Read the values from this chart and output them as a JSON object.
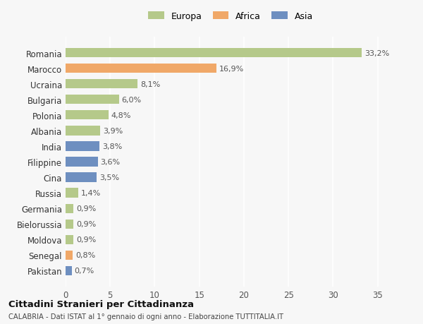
{
  "countries": [
    "Romania",
    "Marocco",
    "Ucraina",
    "Bulgaria",
    "Polonia",
    "Albania",
    "India",
    "Filippine",
    "Cina",
    "Russia",
    "Germania",
    "Bielorussia",
    "Moldova",
    "Senegal",
    "Pakistan"
  ],
  "values": [
    33.2,
    16.9,
    8.1,
    6.0,
    4.8,
    3.9,
    3.8,
    3.6,
    3.5,
    1.4,
    0.9,
    0.9,
    0.9,
    0.8,
    0.7
  ],
  "labels": [
    "33,2%",
    "16,9%",
    "8,1%",
    "6,0%",
    "4,8%",
    "3,9%",
    "3,8%",
    "3,6%",
    "3,5%",
    "1,4%",
    "0,9%",
    "0,9%",
    "0,9%",
    "0,8%",
    "0,7%"
  ],
  "continents": [
    "Europa",
    "Africa",
    "Europa",
    "Europa",
    "Europa",
    "Europa",
    "Asia",
    "Asia",
    "Asia",
    "Europa",
    "Europa",
    "Europa",
    "Europa",
    "Africa",
    "Asia"
  ],
  "colors": {
    "Europa": "#b5c98a",
    "Africa": "#f0a868",
    "Asia": "#6e8fc0"
  },
  "background_color": "#f7f7f7",
  "title": "Cittadini Stranieri per Cittadinanza",
  "subtitle": "CALABRIA - Dati ISTAT al 1° gennaio di ogni anno - Elaborazione TUTTITALIA.IT",
  "xlim": [
    0,
    37
  ],
  "xticks": [
    0,
    5,
    10,
    15,
    20,
    25,
    30,
    35
  ]
}
